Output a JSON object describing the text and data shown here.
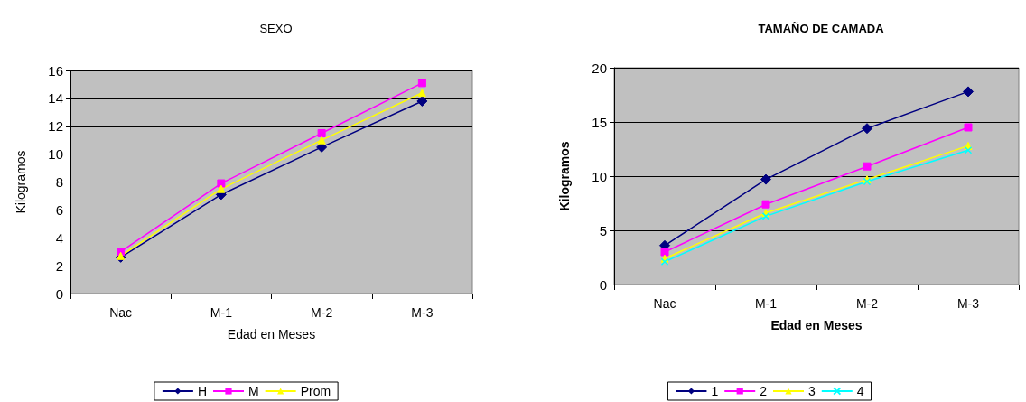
{
  "chart_data": [
    {
      "type": "line",
      "title": "SEXO",
      "xlabel": "Edad en Meses",
      "ylabel": "Kilogramos",
      "categories": [
        "Nac",
        "M-1",
        "M-2",
        "M-3"
      ],
      "series": [
        {
          "name": "H",
          "color": "#000080",
          "marker": "diamond",
          "values": [
            2.6,
            7.1,
            10.5,
            13.8
          ]
        },
        {
          "name": "M",
          "color": "#ff00ff",
          "marker": "square",
          "values": [
            3.0,
            7.9,
            11.5,
            15.1
          ]
        },
        {
          "name": "Prom",
          "color": "#ffff00",
          "marker": "triangle",
          "values": [
            2.7,
            7.5,
            11.0,
            14.4
          ]
        }
      ],
      "ylim": [
        0,
        16
      ],
      "yticks": [
        0,
        2,
        4,
        6,
        8,
        10,
        12,
        14,
        16
      ],
      "grid": "y",
      "legend": "bottom",
      "line_style": "solid"
    },
    {
      "type": "line",
      "title": "TAMAÑO DE CAMADA",
      "xlabel": "Edad en Meses",
      "ylabel": "Kilogramos",
      "categories": [
        "Nac",
        "M-1",
        "M-2",
        "M-3"
      ],
      "series": [
        {
          "name": "1",
          "color": "#000080",
          "marker": "diamond",
          "values": [
            3.6,
            9.7,
            14.4,
            17.8
          ]
        },
        {
          "name": "2",
          "color": "#ff00ff",
          "marker": "square",
          "values": [
            3.0,
            7.4,
            10.9,
            14.5
          ]
        },
        {
          "name": "3",
          "color": "#ffff00",
          "marker": "triangle",
          "values": [
            2.4,
            6.6,
            9.7,
            12.8
          ]
        },
        {
          "name": "4",
          "color": "#00ffff",
          "marker": "cross",
          "values": [
            2.1,
            6.3,
            9.5,
            12.4
          ]
        }
      ],
      "ylim": [
        0,
        20
      ],
      "yticks": [
        0,
        5,
        10,
        15,
        20
      ],
      "grid": "y",
      "legend": "bottom",
      "line_style": "solid"
    }
  ]
}
